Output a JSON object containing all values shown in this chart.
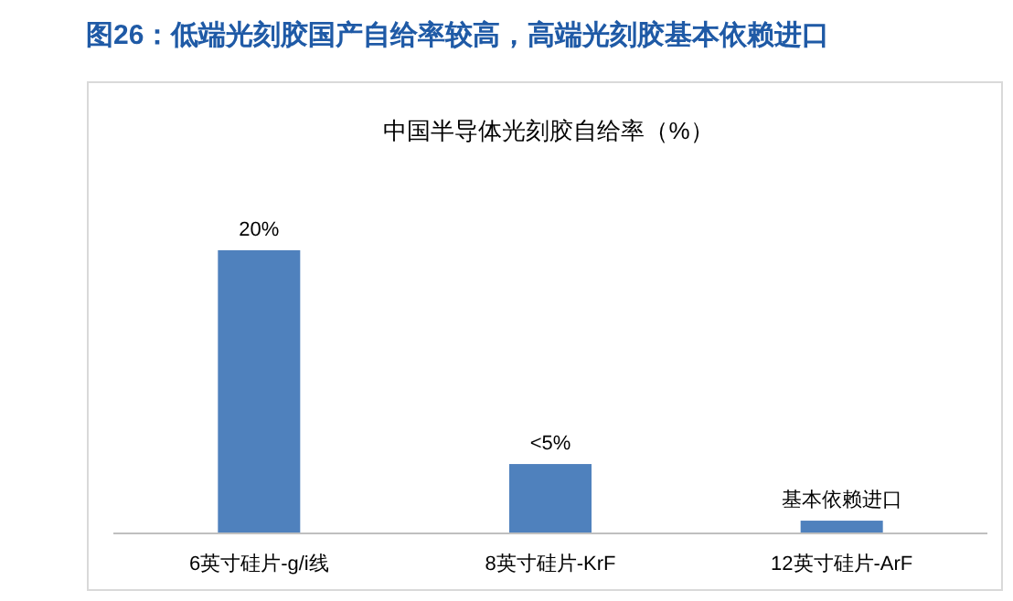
{
  "chart_data": {
    "type": "bar",
    "title": "图26：低端光刻胶国产自给率较高，高端光刻胶基本依赖进口",
    "subtitle": "中国半导体光刻胶自给率（%）",
    "categories": [
      "6英寸硅片-g/i线",
      "8英寸硅片-KrF",
      "12英寸硅片-ArF"
    ],
    "values": [
      20,
      4.9,
      0.9
    ],
    "value_labels": [
      "20%",
      "<5%",
      "基本依赖进口"
    ],
    "color": "#4f81bd"
  }
}
